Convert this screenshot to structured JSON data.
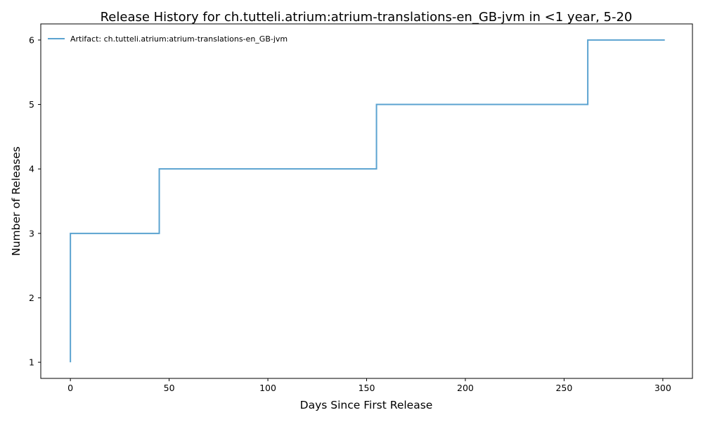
{
  "chart_data": {
    "type": "line",
    "title": "Release History for ch.tutteli.atrium:atrium-translations-en_GB-jvm in <1 year, 5-20",
    "xlabel": "Days Since First Release",
    "ylabel": "Number of Releases",
    "xlim": [
      -15,
      315
    ],
    "ylim": [
      0.75,
      6.25
    ],
    "x_ticks": [
      0,
      50,
      100,
      150,
      200,
      250,
      300
    ],
    "y_ticks": [
      1,
      2,
      3,
      4,
      5,
      6
    ],
    "step": "post",
    "grid": false,
    "legend_position": "top-left",
    "series": [
      {
        "name": "Artifact: ch.tutteli.atrium:atrium-translations-en_GB-jvm",
        "color": "#5ba3d0",
        "x": [
          0,
          0,
          0,
          45,
          155,
          262,
          301
        ],
        "y": [
          1,
          2,
          3,
          4,
          5,
          6,
          6
        ]
      }
    ]
  }
}
